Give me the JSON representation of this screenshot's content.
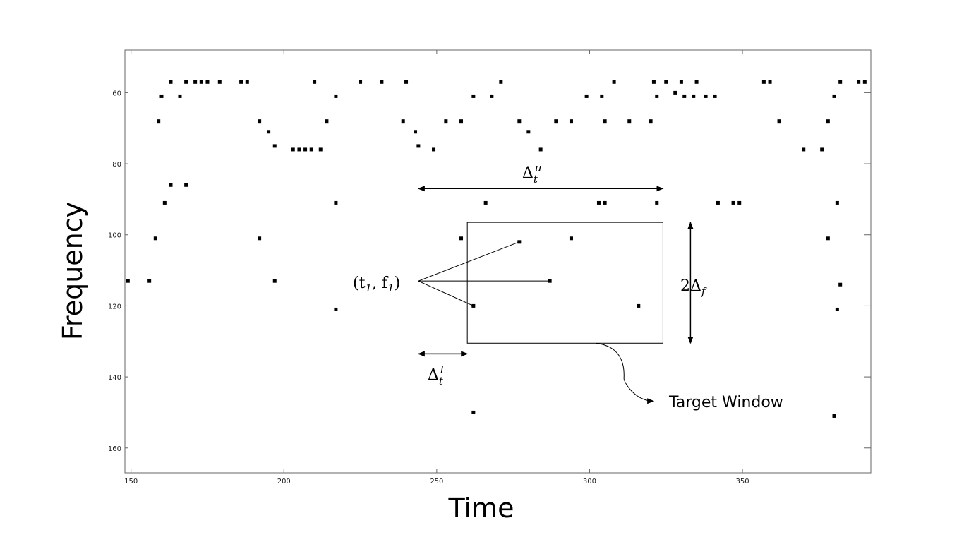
{
  "chart_data": {
    "type": "scatter",
    "xlabel": "Time",
    "ylabel": "Frequency",
    "xlim": [
      148,
      392
    ],
    "ylim": [
      48,
      167
    ],
    "y_inverted": true,
    "x_ticks": [
      150,
      200,
      250,
      300,
      350
    ],
    "y_ticks": [
      60,
      80,
      100,
      120,
      140,
      160
    ],
    "grid": false,
    "points": [
      [
        149,
        113
      ],
      [
        156,
        113
      ],
      [
        158,
        101
      ],
      [
        159,
        68
      ],
      [
        160,
        61
      ],
      [
        161,
        91
      ],
      [
        163,
        57
      ],
      [
        163,
        86
      ],
      [
        166,
        61
      ],
      [
        168,
        57
      ],
      [
        168,
        86
      ],
      [
        171,
        57
      ],
      [
        173,
        57
      ],
      [
        175,
        57
      ],
      [
        179,
        57
      ],
      [
        186,
        57
      ],
      [
        188,
        57
      ],
      [
        192,
        68
      ],
      [
        192,
        101
      ],
      [
        195,
        71
      ],
      [
        197,
        75
      ],
      [
        197,
        113
      ],
      [
        203,
        76
      ],
      [
        205,
        76
      ],
      [
        207,
        76
      ],
      [
        209,
        76
      ],
      [
        210,
        57
      ],
      [
        212,
        76
      ],
      [
        214,
        68
      ],
      [
        217,
        61
      ],
      [
        217,
        91
      ],
      [
        217,
        121
      ],
      [
        225,
        57
      ],
      [
        232,
        57
      ],
      [
        239,
        68
      ],
      [
        240,
        57
      ],
      [
        243,
        71
      ],
      [
        244,
        75
      ],
      [
        249,
        76
      ],
      [
        253,
        68
      ],
      [
        258,
        68
      ],
      [
        258,
        101
      ],
      [
        262,
        61
      ],
      [
        262,
        120
      ],
      [
        262,
        150
      ],
      [
        266,
        91
      ],
      [
        268,
        61
      ],
      [
        271,
        57
      ],
      [
        277,
        68
      ],
      [
        277,
        102
      ],
      [
        280,
        71
      ],
      [
        284,
        76
      ],
      [
        287,
        113
      ],
      [
        289,
        68
      ],
      [
        294,
        68
      ],
      [
        294,
        101
      ],
      [
        299,
        61
      ],
      [
        303,
        91
      ],
      [
        304,
        61
      ],
      [
        305,
        68
      ],
      [
        305,
        91
      ],
      [
        308,
        57
      ],
      [
        313,
        68
      ],
      [
        316,
        120
      ],
      [
        320,
        68
      ],
      [
        321,
        57
      ],
      [
        322,
        61
      ],
      [
        322,
        91
      ],
      [
        325,
        57
      ],
      [
        328,
        60
      ],
      [
        330,
        57
      ],
      [
        331,
        61
      ],
      [
        334,
        61
      ],
      [
        335,
        57
      ],
      [
        338,
        61
      ],
      [
        341,
        61
      ],
      [
        342,
        91
      ],
      [
        347,
        91
      ],
      [
        349,
        91
      ],
      [
        357,
        57
      ],
      [
        359,
        57
      ],
      [
        362,
        68
      ],
      [
        370,
        76
      ],
      [
        376,
        76
      ],
      [
        378,
        68
      ],
      [
        378,
        101
      ],
      [
        380,
        61
      ],
      [
        380,
        151
      ],
      [
        381,
        121
      ],
      [
        381,
        91
      ],
      [
        382,
        57
      ],
      [
        382,
        114
      ],
      [
        388,
        57
      ],
      [
        390,
        57
      ]
    ],
    "annotations": {
      "anchor_point_label": "(t",
      "anchor_point_sub1": "1",
      "anchor_point_mid": ", f",
      "anchor_point_sub2": "1",
      "anchor_point_end": ")",
      "delta_upper_label": "Δ",
      "delta_upper_sub": "t",
      "delta_upper_sup": "u",
      "delta_lower_label": "Δ",
      "delta_lower_sub": "t",
      "delta_lower_sup": "l",
      "freq_range_label": "2Δ",
      "freq_range_sub": "f",
      "target_window_label": "Target Window"
    }
  }
}
